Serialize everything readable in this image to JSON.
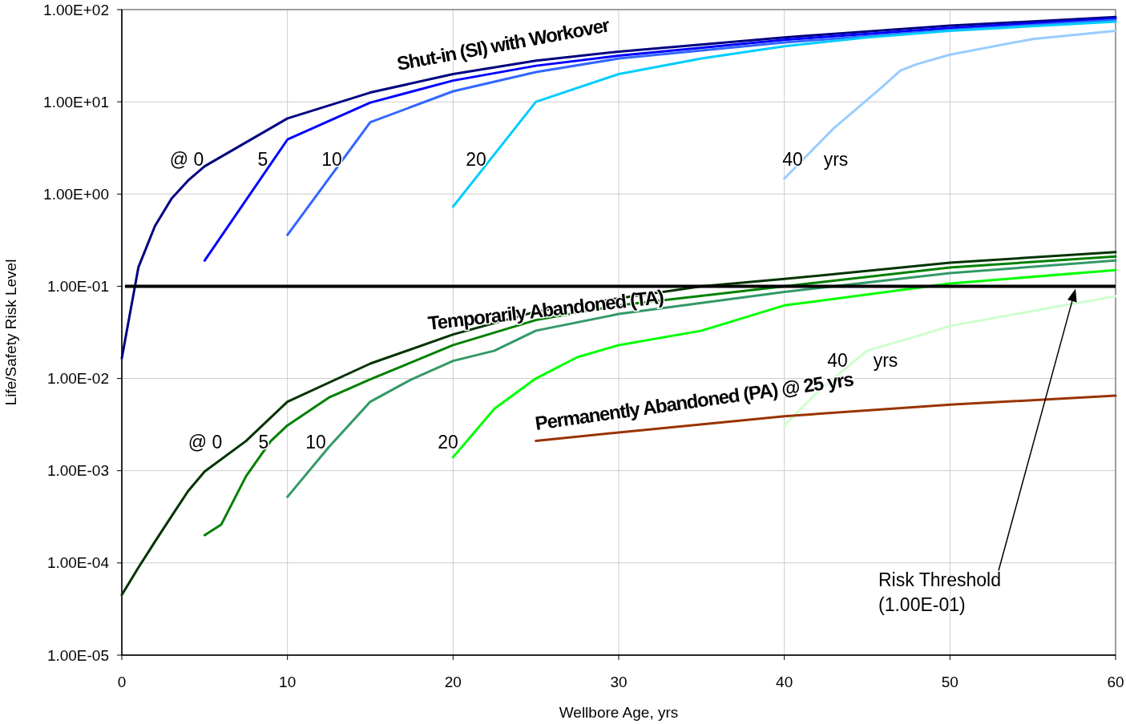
{
  "chart_data": {
    "type": "line",
    "xlabel": "Wellbore Age, yrs",
    "ylabel": "Life/Safety Risk Level",
    "log": "y",
    "grid": true,
    "marker": "none",
    "line_style": "solid",
    "xlim": [
      0,
      60
    ],
    "xticks": [
      0,
      10,
      20,
      30,
      40,
      50,
      60
    ],
    "ylim": [
      1e-05,
      100
    ],
    "yticks": [
      {
        "value": 1e-05,
        "label": "1.00E-05"
      },
      {
        "value": 0.0001,
        "label": "1.00E-04"
      },
      {
        "value": 0.001,
        "label": "1.00E-03"
      },
      {
        "value": 0.01,
        "label": "1.00E-02"
      },
      {
        "value": 0.1,
        "label": "1.00E-01"
      },
      {
        "value": 1,
        "label": "1.00E+00"
      },
      {
        "value": 10,
        "label": "1.00E+01"
      },
      {
        "value": 100,
        "label": "1.00E+02"
      }
    ],
    "series": [
      {
        "color": "#000080",
        "x": [
          0,
          1,
          2,
          3,
          4,
          5,
          10,
          15,
          20,
          25,
          30,
          40,
          50,
          60
        ],
        "values": [
          0.0166,
          0.16,
          0.45,
          0.89,
          1.4,
          2.0,
          6.6,
          12.6,
          20,
          28,
          35,
          50,
          67,
          83
        ]
      },
      {
        "color": "#0000ff",
        "x": [
          5,
          10,
          15,
          20,
          25,
          30,
          40,
          50,
          60
        ],
        "values": [
          0.19,
          3.9,
          9.8,
          17,
          24.6,
          31.6,
          47,
          63,
          80
        ]
      },
      {
        "color": "#3366ff",
        "x": [
          10,
          15,
          20,
          25,
          30,
          40,
          50,
          60
        ],
        "values": [
          0.36,
          6.0,
          13,
          21,
          29.5,
          44,
          60,
          77
        ]
      },
      {
        "color": "#00ccff",
        "x": [
          20,
          25,
          30,
          35,
          40,
          45,
          50,
          60
        ],
        "values": [
          0.73,
          10,
          20,
          29.5,
          40,
          50,
          59,
          74
        ]
      },
      {
        "color": "#99ccff",
        "x": [
          40,
          43,
          45,
          46,
          47,
          48,
          50,
          55,
          60
        ],
        "values": [
          1.47,
          5.2,
          10.5,
          15,
          21.8,
          25.6,
          32.5,
          48,
          59
        ]
      },
      {
        "color": "#003300",
        "x": [
          0,
          1,
          2,
          3,
          4,
          5,
          7.5,
          10,
          15,
          20,
          25,
          30,
          35,
          40,
          50,
          60
        ],
        "values": [
          4.5e-05,
          8.9e-05,
          0.00017,
          0.00032,
          0.0006,
          0.00098,
          0.0021,
          0.0056,
          0.0145,
          0.03,
          0.053,
          0.074,
          0.1,
          0.12,
          0.18,
          0.235
        ]
      },
      {
        "color": "#008000",
        "x": [
          5,
          6,
          7.5,
          9,
          10,
          12.5,
          15,
          20,
          25,
          30,
          40,
          50,
          60
        ],
        "values": [
          0.0002,
          0.00026,
          0.00087,
          0.0021,
          0.0031,
          0.0062,
          0.0098,
          0.023,
          0.043,
          0.062,
          0.1,
          0.16,
          0.21
        ]
      },
      {
        "color": "#339966",
        "x": [
          10,
          12.5,
          15,
          17.5,
          20,
          22.5,
          25,
          30,
          40,
          50,
          60
        ],
        "values": [
          0.00052,
          0.0018,
          0.0056,
          0.0098,
          0.0155,
          0.02,
          0.033,
          0.05,
          0.087,
          0.139,
          0.19
        ]
      },
      {
        "color": "#00ff00",
        "x": [
          20,
          22.5,
          25,
          27.5,
          30,
          35,
          40,
          50,
          60
        ],
        "values": [
          0.0014,
          0.0047,
          0.01,
          0.017,
          0.023,
          0.033,
          0.062,
          0.107,
          0.15
        ]
      },
      {
        "color": "#ccffcc",
        "x": [
          40,
          42,
          43.5,
          45,
          47.5,
          50,
          55,
          60
        ],
        "values": [
          0.0031,
          0.0071,
          0.012,
          0.02,
          0.027,
          0.037,
          0.054,
          0.078
        ]
      },
      {
        "color": "#993300",
        "x": [
          25,
          30,
          40,
          50,
          60
        ],
        "values": [
          0.0021,
          0.0026,
          0.0039,
          0.0052,
          0.0065
        ]
      }
    ],
    "ref_lines": [
      {
        "axis": "y",
        "value": 0.1,
        "color": "#000000",
        "label": "Risk Threshold\n(1.00E-01)"
      }
    ],
    "annotations": [
      "Shut-in (SI) with Workover",
      "Temporarily Abandoned (TA)",
      "Permanently Abandoned (PA) @ 25 yrs",
      "@ 0",
      "5",
      "10",
      "20",
      "40",
      "yrs",
      "@ 0",
      "5",
      "10",
      "20",
      "40",
      "yrs"
    ]
  }
}
